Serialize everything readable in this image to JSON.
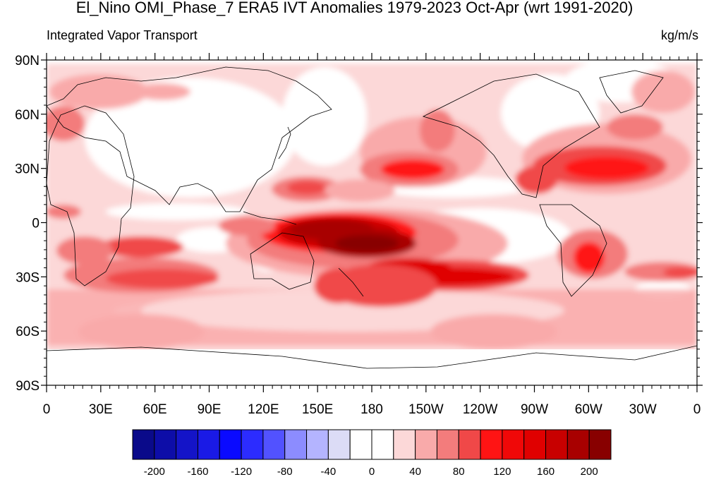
{
  "title": "El_Nino OMI_Phase_7 ERA5 IVT Anomalies 1979-2023 Oct-Apr (wrt 1991-2020)",
  "left_string": "Integrated Vapor Transport",
  "right_string": "kg/m/s",
  "axes": {
    "lat_ticks": [
      "90N",
      "60N",
      "30N",
      "0",
      "30S",
      "60S",
      "90S"
    ],
    "lon_ticks": [
      "0",
      "30E",
      "60E",
      "90E",
      "120E",
      "150E",
      "180",
      "150W",
      "120W",
      "90W",
      "60W",
      "30W",
      "0"
    ]
  },
  "colorbar": {
    "colors": [
      "#0a0a8a",
      "#0d0da8",
      "#1414c8",
      "#1a1ae6",
      "#0a0aff",
      "#2c2cff",
      "#5252ff",
      "#8c8cff",
      "#b4b4ff",
      "#dcdcf6",
      "#ffffff",
      "#ffffff",
      "#fcd8d8",
      "#f9aaaa",
      "#f37c7c",
      "#f04848",
      "#ff1414",
      "#f00808",
      "#e00000",
      "#c80000",
      "#a80000",
      "#880000"
    ],
    "labels": [
      "-200",
      "-160",
      "-120",
      "-80",
      "-40",
      "0",
      "40",
      "80",
      "120",
      "160",
      "200"
    ]
  }
}
